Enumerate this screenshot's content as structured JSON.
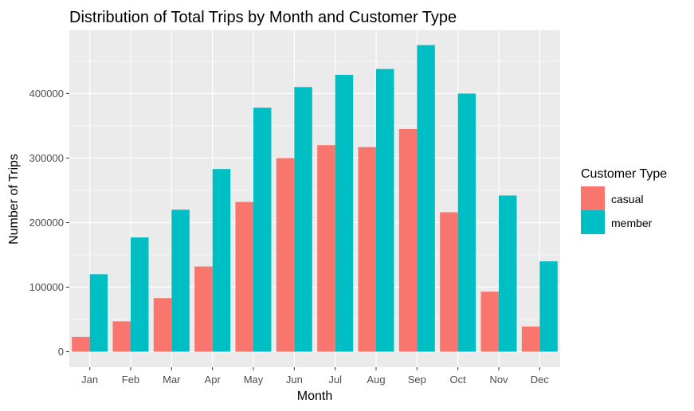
{
  "chart_data": {
    "type": "bar",
    "title": "Distribution of Total Trips by Month and Customer Type",
    "xlabel": "Month",
    "ylabel": "Number of Trips",
    "categories": [
      "Jan",
      "Feb",
      "Mar",
      "Apr",
      "May",
      "Jun",
      "Jul",
      "Aug",
      "Sep",
      "Oct",
      "Nov",
      "Dec"
    ],
    "series": [
      {
        "name": "casual",
        "color": "#F8766D",
        "values": [
          23000,
          47000,
          83000,
          132000,
          232000,
          300000,
          320000,
          317000,
          345000,
          216000,
          93000,
          39000
        ]
      },
      {
        "name": "member",
        "color": "#00BFC4",
        "values": [
          120000,
          177000,
          220000,
          283000,
          378000,
          410000,
          429000,
          438000,
          475000,
          400000,
          242000,
          140000
        ]
      }
    ],
    "yticks": [
      0,
      100000,
      200000,
      300000,
      400000
    ],
    "ylim": [
      -24000,
      498000
    ],
    "grid": true,
    "legend": {
      "title": "Customer Type",
      "position": "right"
    }
  }
}
